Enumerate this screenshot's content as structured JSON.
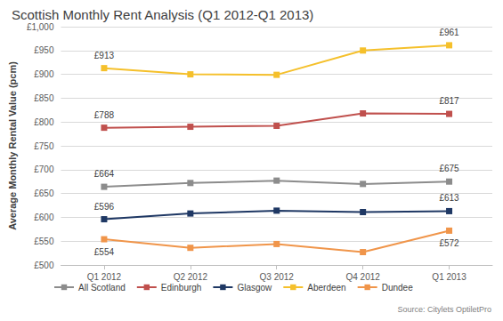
{
  "chart_data": {
    "type": "line",
    "title": "Scottish Monthly Rent Analysis (Q1 2012-Q1 2013)",
    "y_label": "Average Monthly Rental Value (pcm)",
    "source": "Source: Citylets OptiletPro",
    "categories": [
      "Q1 2012",
      "Q2 2012",
      "Q3 2012",
      "Q4 2012",
      "Q1 2013"
    ],
    "series": [
      {
        "name": "All Scotland",
        "color": "#8c8c8c",
        "values": [
          664,
          672,
          677,
          670,
          675
        ],
        "value_labels": [
          "£664",
          null,
          null,
          null,
          "£675"
        ]
      },
      {
        "name": "Edinburgh",
        "color": "#c0504d",
        "values": [
          788,
          790,
          792,
          818,
          817
        ],
        "value_labels": [
          "£788",
          null,
          null,
          null,
          "£817"
        ]
      },
      {
        "name": "Glasgow",
        "color": "#1f3864",
        "values": [
          596,
          608,
          614,
          611,
          613
        ],
        "value_labels": [
          "£596",
          null,
          null,
          null,
          "£613"
        ]
      },
      {
        "name": "Aberdeen",
        "color": "#f5c02b",
        "values": [
          913,
          900,
          899,
          950,
          961
        ],
        "value_labels": [
          "£913",
          null,
          null,
          null,
          "£961"
        ]
      },
      {
        "name": "Dundee",
        "color": "#f0954a",
        "values": [
          554,
          536,
          544,
          527,
          572
        ],
        "value_labels": [
          "£554",
          null,
          null,
          null,
          "£572"
        ]
      }
    ],
    "ylim": [
      500,
      1000
    ],
    "yticks": [
      {
        "value": 500,
        "label": "£500"
      },
      {
        "value": 550,
        "label": "£550"
      },
      {
        "value": 600,
        "label": "£600"
      },
      {
        "value": 650,
        "label": "£650"
      },
      {
        "value": 700,
        "label": "£700"
      },
      {
        "value": 750,
        "label": "£750"
      },
      {
        "value": 800,
        "label": "£800"
      },
      {
        "value": 850,
        "label": "£850"
      },
      {
        "value": 900,
        "label": "£900"
      },
      {
        "value": 950,
        "label": "£950"
      },
      {
        "value": 1000,
        "label": "£1,000"
      }
    ],
    "grid": true,
    "legend": "bottom",
    "marker": "square"
  }
}
